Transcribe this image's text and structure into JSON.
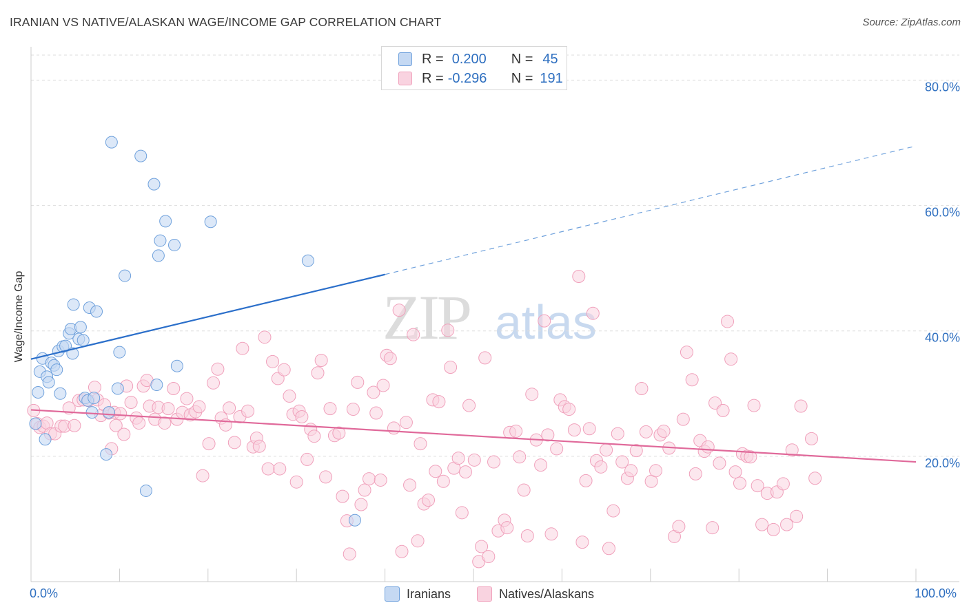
{
  "title": "IRANIAN VS NATIVE/ALASKAN WAGE/INCOME GAP CORRELATION CHART",
  "source": "Source: ZipAtlas.com",
  "watermark": {
    "zip": "ZIP",
    "atlas": "atlas"
  },
  "legend": [
    {
      "r_label": "R =",
      "r_value": "0.200",
      "n_label": "N =",
      "n_value": "45",
      "color": "#6fa1dc"
    },
    {
      "r_label": "R =",
      "r_value": "-0.296",
      "n_label": "N =",
      "n_value": "191",
      "color": "#f0a0bb"
    }
  ],
  "bottom_legend": [
    "Iranians",
    "Natives/Alaskans"
  ],
  "chart_data": {
    "type": "scatter",
    "xlabel": "",
    "ylabel": "Wage/Income Gap",
    "xlim": [
      0,
      100
    ],
    "ylim": [
      0,
      84
    ],
    "x_tick_labels": [
      "0.0%",
      "100.0%"
    ],
    "y_ticks": [
      20,
      40,
      60,
      80
    ],
    "y_tick_labels": [
      "20.0%",
      "40.0%",
      "60.0%",
      "80.0%"
    ],
    "grid": "dashed horizontal",
    "legend_position": "top-center",
    "series": [
      {
        "name": "Iranians",
        "color": "#6fa1dc",
        "fill": "#c5d9f3",
        "trend": {
          "x0": 0,
          "y0": 35.5,
          "x1": 40,
          "y1": 49,
          "dashed_to": 100,
          "y_dashed_end": 69.5
        },
        "points": [
          [
            0.5,
            25.2
          ],
          [
            0.8,
            30.2
          ],
          [
            1.0,
            33.5
          ],
          [
            1.3,
            35.6
          ],
          [
            1.6,
            22.7
          ],
          [
            1.8,
            32.7
          ],
          [
            2.0,
            31.8
          ],
          [
            2.3,
            34.9
          ],
          [
            2.6,
            34.5
          ],
          [
            2.9,
            33.8
          ],
          [
            3.1,
            36.8
          ],
          [
            3.3,
            30.0
          ],
          [
            3.6,
            37.5
          ],
          [
            3.9,
            37.6
          ],
          [
            4.3,
            39.6
          ],
          [
            4.5,
            40.3
          ],
          [
            4.7,
            36.4
          ],
          [
            4.8,
            44.2
          ],
          [
            5.4,
            38.7
          ],
          [
            5.6,
            40.6
          ],
          [
            5.9,
            38.5
          ],
          [
            6.1,
            29.3
          ],
          [
            6.4,
            28.9
          ],
          [
            6.6,
            43.7
          ],
          [
            6.9,
            27.0
          ],
          [
            7.1,
            29.3
          ],
          [
            7.4,
            43.1
          ],
          [
            8.5,
            20.3
          ],
          [
            8.8,
            27.0
          ],
          [
            9.1,
            70.1
          ],
          [
            9.8,
            30.8
          ],
          [
            10.0,
            36.6
          ],
          [
            10.6,
            48.8
          ],
          [
            12.4,
            67.9
          ],
          [
            13.0,
            14.5
          ],
          [
            13.9,
            63.4
          ],
          [
            14.2,
            31.4
          ],
          [
            14.4,
            52.0
          ],
          [
            14.6,
            54.4
          ],
          [
            15.2,
            57.5
          ],
          [
            16.2,
            53.7
          ],
          [
            16.5,
            34.4
          ],
          [
            20.3,
            57.4
          ],
          [
            31.3,
            51.2
          ],
          [
            36.6,
            9.8
          ]
        ]
      },
      {
        "name": "Natives/Alaskans",
        "color": "#f0a0bb",
        "fill": "#f9d3e0",
        "trend": {
          "x0": 0,
          "y0": 27.4,
          "x1": 100,
          "y1": 19.1
        },
        "points": [
          [
            0.3,
            27.3
          ],
          [
            0.7,
            25.2
          ],
          [
            1.0,
            24.6
          ],
          [
            1.4,
            24.8
          ],
          [
            1.8,
            25.3
          ],
          [
            2.2,
            23.6
          ],
          [
            2.7,
            23.6
          ],
          [
            3.4,
            24.8
          ],
          [
            3.8,
            24.8
          ],
          [
            4.3,
            27.7
          ],
          [
            4.9,
            24.9
          ],
          [
            5.4,
            28.9
          ],
          [
            5.9,
            29.0
          ],
          [
            6.5,
            28.9
          ],
          [
            7.2,
            31.0
          ],
          [
            7.5,
            29.0
          ],
          [
            7.9,
            26.5
          ],
          [
            8.3,
            28.2
          ],
          [
            8.8,
            26.9
          ],
          [
            9.1,
            21.2
          ],
          [
            9.4,
            27.0
          ],
          [
            9.6,
            24.9
          ],
          [
            10.1,
            26.8
          ],
          [
            10.5,
            23.5
          ],
          [
            10.8,
            31.2
          ],
          [
            11.3,
            28.6
          ],
          [
            11.9,
            26.1
          ],
          [
            12.2,
            25.3
          ],
          [
            12.7,
            31.2
          ],
          [
            13.1,
            32.1
          ],
          [
            13.4,
            28.0
          ],
          [
            14.0,
            25.9
          ],
          [
            14.4,
            27.8
          ],
          [
            15.1,
            25.3
          ],
          [
            15.5,
            27.6
          ],
          [
            16.1,
            30.8
          ],
          [
            16.5,
            25.9
          ],
          [
            17.1,
            27.0
          ],
          [
            17.6,
            29.2
          ],
          [
            18.0,
            26.6
          ],
          [
            18.6,
            27.1
          ],
          [
            19.0,
            27.9
          ],
          [
            19.4,
            16.9
          ],
          [
            20.1,
            22.0
          ],
          [
            20.6,
            31.7
          ],
          [
            21.1,
            33.9
          ],
          [
            21.5,
            26.1
          ],
          [
            22.0,
            25.0
          ],
          [
            22.4,
            27.7
          ],
          [
            23.0,
            22.2
          ],
          [
            23.6,
            26.3
          ],
          [
            23.9,
            37.2
          ],
          [
            24.5,
            27.2
          ],
          [
            25.1,
            21.5
          ],
          [
            25.5,
            22.9
          ],
          [
            25.8,
            21.6
          ],
          [
            26.4,
            39.0
          ],
          [
            26.8,
            18.0
          ],
          [
            27.3,
            35.1
          ],
          [
            27.9,
            32.4
          ],
          [
            28.1,
            18.0
          ],
          [
            28.6,
            33.8
          ],
          [
            29.2,
            29.6
          ],
          [
            29.6,
            26.7
          ],
          [
            30.0,
            15.9
          ],
          [
            30.3,
            27.2
          ],
          [
            30.6,
            26.3
          ],
          [
            31.2,
            19.5
          ],
          [
            31.6,
            24.3
          ],
          [
            32.0,
            23.2
          ],
          [
            32.4,
            33.3
          ],
          [
            32.8,
            35.3
          ],
          [
            33.3,
            16.7
          ],
          [
            33.8,
            27.6
          ],
          [
            34.3,
            23.3
          ],
          [
            34.8,
            23.7
          ],
          [
            35.2,
            13.6
          ],
          [
            35.7,
            9.7
          ],
          [
            36.0,
            4.4
          ],
          [
            36.4,
            27.5
          ],
          [
            36.9,
            31.8
          ],
          [
            37.3,
            12.3
          ],
          [
            37.7,
            14.6
          ],
          [
            38.2,
            16.4
          ],
          [
            38.7,
            30.2
          ],
          [
            39.0,
            26.9
          ],
          [
            39.5,
            16.2
          ],
          [
            39.8,
            31.3
          ],
          [
            40.2,
            36.1
          ],
          [
            40.6,
            35.6
          ],
          [
            41.0,
            24.5
          ],
          [
            41.6,
            43.3
          ],
          [
            41.9,
            4.8
          ],
          [
            42.4,
            25.4
          ],
          [
            42.8,
            15.4
          ],
          [
            43.2,
            39.4
          ],
          [
            43.7,
            6.5
          ],
          [
            44.0,
            22.0
          ],
          [
            44.4,
            12.4
          ],
          [
            44.9,
            13.0
          ],
          [
            45.4,
            29.0
          ],
          [
            45.7,
            17.6
          ],
          [
            46.1,
            28.7
          ],
          [
            46.6,
            16.0
          ],
          [
            47.1,
            40.1
          ],
          [
            47.4,
            34.2
          ],
          [
            47.8,
            18.1
          ],
          [
            48.3,
            19.7
          ],
          [
            48.7,
            11.0
          ],
          [
            49.1,
            17.5
          ],
          [
            49.5,
            28.1
          ],
          [
            50.1,
            19.4
          ],
          [
            50.6,
            3.2
          ],
          [
            50.9,
            5.6
          ],
          [
            51.3,
            35.7
          ],
          [
            51.7,
            4.0
          ],
          [
            52.3,
            19.1
          ],
          [
            52.8,
            8.1
          ],
          [
            53.5,
            9.8
          ],
          [
            53.8,
            8.6
          ],
          [
            54.1,
            23.8
          ],
          [
            54.8,
            24.0
          ],
          [
            55.2,
            19.9
          ],
          [
            55.7,
            14.6
          ],
          [
            56.1,
            7.3
          ],
          [
            56.6,
            29.9
          ],
          [
            57.1,
            22.6
          ],
          [
            57.6,
            18.6
          ],
          [
            58.0,
            41.6
          ],
          [
            58.4,
            23.4
          ],
          [
            58.8,
            7.6
          ],
          [
            59.4,
            21.2
          ],
          [
            59.8,
            29.0
          ],
          [
            60.3,
            27.9
          ],
          [
            60.8,
            27.5
          ],
          [
            61.4,
            24.2
          ],
          [
            61.9,
            48.7
          ],
          [
            62.3,
            6.3
          ],
          [
            62.7,
            16.1
          ],
          [
            63.1,
            24.4
          ],
          [
            63.5,
            42.8
          ],
          [
            63.9,
            19.3
          ],
          [
            64.4,
            18.3
          ],
          [
            65.0,
            21.0
          ],
          [
            65.3,
            5.3
          ],
          [
            65.8,
            11.3
          ],
          [
            66.3,
            23.6
          ],
          [
            66.8,
            19.1
          ],
          [
            67.4,
            16.5
          ],
          [
            67.8,
            17.7
          ],
          [
            68.4,
            20.9
          ],
          [
            69.0,
            30.8
          ],
          [
            69.5,
            23.9
          ],
          [
            70.1,
            16.0
          ],
          [
            70.6,
            17.7
          ],
          [
            71.1,
            23.4
          ],
          [
            71.5,
            24.0
          ],
          [
            72.1,
            21.3
          ],
          [
            72.7,
            7.2
          ],
          [
            73.2,
            8.8
          ],
          [
            73.7,
            25.9
          ],
          [
            74.1,
            36.6
          ],
          [
            74.7,
            32.2
          ],
          [
            75.1,
            17.2
          ],
          [
            75.6,
            22.5
          ],
          [
            76.1,
            20.8
          ],
          [
            76.5,
            21.5
          ],
          [
            77.0,
            8.6
          ],
          [
            77.3,
            28.5
          ],
          [
            77.8,
            18.9
          ],
          [
            78.2,
            27.3
          ],
          [
            78.7,
            41.5
          ],
          [
            79.1,
            35.5
          ],
          [
            79.6,
            17.5
          ],
          [
            80.1,
            15.7
          ],
          [
            80.4,
            20.4
          ],
          [
            80.9,
            20.0
          ],
          [
            81.3,
            19.9
          ],
          [
            81.7,
            28.1
          ],
          [
            82.1,
            15.3
          ],
          [
            82.6,
            9.1
          ],
          [
            83.2,
            14.1
          ],
          [
            83.9,
            8.3
          ],
          [
            84.3,
            14.3
          ],
          [
            85.0,
            15.6
          ],
          [
            85.4,
            9.1
          ],
          [
            86.0,
            21.0
          ],
          [
            86.5,
            10.4
          ],
          [
            87.0,
            28.0
          ],
          [
            88.2,
            22.8
          ],
          [
            88.6,
            16.5
          ]
        ]
      }
    ]
  }
}
